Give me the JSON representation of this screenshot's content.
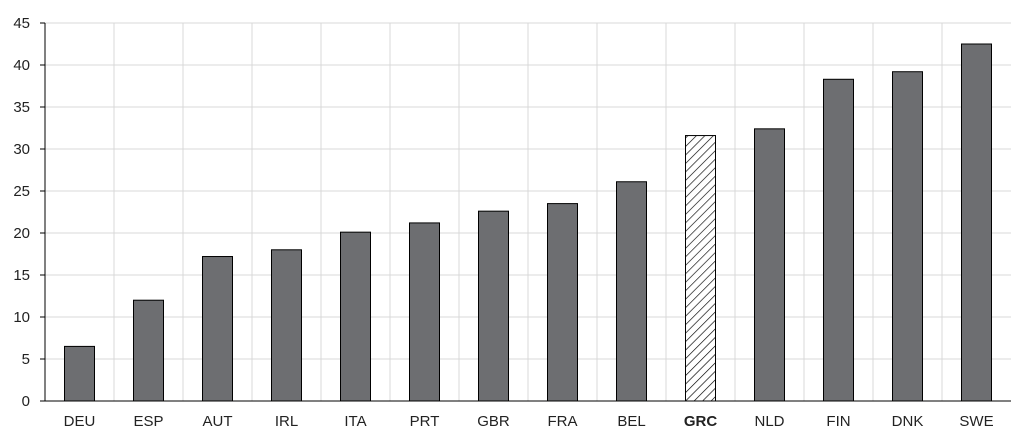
{
  "chart_data": {
    "type": "bar",
    "title": "",
    "xlabel": "",
    "ylabel": "",
    "ylim": [
      0,
      45
    ],
    "yticks": [
      0,
      5,
      10,
      15,
      20,
      25,
      30,
      35,
      40,
      45
    ],
    "grid": "vertical-and-horizontal",
    "categories": [
      "DEU",
      "ESP",
      "AUT",
      "IRL",
      "ITA",
      "PRT",
      "GBR",
      "FRA",
      "BEL",
      "GRC",
      "NLD",
      "FIN",
      "DNK",
      "SWE"
    ],
    "values": [
      6.5,
      12.0,
      17.2,
      18.0,
      20.1,
      21.2,
      22.6,
      23.5,
      26.1,
      31.6,
      32.4,
      38.3,
      39.2,
      42.5
    ],
    "highlight": "GRC",
    "colors": {
      "bar_fill": "#6d6e71",
      "bar_stroke": "#000000",
      "highlight_hatch": "#000000",
      "grid": "#d9d9d9",
      "axis": "#000000"
    }
  }
}
